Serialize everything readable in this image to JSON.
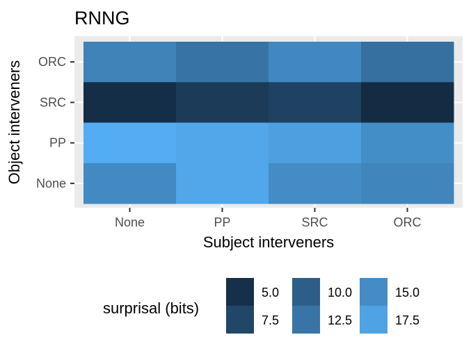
{
  "chart_data": {
    "type": "heatmap",
    "title": "RNNG",
    "xlabel": "Subject interveners",
    "ylabel": "Object interveners",
    "x_categories": [
      "None",
      "PP",
      "SRC",
      "ORC"
    ],
    "y_categories": [
      "None",
      "PP",
      "SRC",
      "ORC"
    ],
    "cells": [
      {
        "x": "None",
        "y": "ORC",
        "value": 14.0
      },
      {
        "x": "PP",
        "y": "ORC",
        "value": 12.3
      },
      {
        "x": "SRC",
        "y": "ORC",
        "value": 14.6
      },
      {
        "x": "ORC",
        "y": "ORC",
        "value": 12.0
      },
      {
        "x": "None",
        "y": "SRC",
        "value": 4.8
      },
      {
        "x": "PP",
        "y": "SRC",
        "value": 6.2
      },
      {
        "x": "SRC",
        "y": "SRC",
        "value": 7.0
      },
      {
        "x": "ORC",
        "y": "SRC",
        "value": 4.6
      },
      {
        "x": "None",
        "y": "PP",
        "value": 18.6
      },
      {
        "x": "PP",
        "y": "PP",
        "value": 17.9
      },
      {
        "x": "SRC",
        "y": "PP",
        "value": 17.1
      },
      {
        "x": "ORC",
        "y": "PP",
        "value": 15.2
      },
      {
        "x": "None",
        "y": "None",
        "value": 14.8
      },
      {
        "x": "PP",
        "y": "None",
        "value": 17.9
      },
      {
        "x": "SRC",
        "y": "None",
        "value": 15.0
      },
      {
        "x": "ORC",
        "y": "None",
        "value": 14.2
      }
    ],
    "colorbar": {
      "title": "surprisal (bits)",
      "range": [
        4.5,
        19
      ],
      "low_color": "#132B43",
      "high_color": "#56B1F7",
      "entries": [
        {
          "label": "5.0",
          "value": 5.0
        },
        {
          "label": "7.5",
          "value": 7.5
        },
        {
          "label": "10.0",
          "value": 10.0
        },
        {
          "label": "12.5",
          "value": 12.5
        },
        {
          "label": "15.0",
          "value": 15.0
        },
        {
          "label": "17.5",
          "value": 17.5
        }
      ]
    },
    "grid": true,
    "legend_position": "bottom"
  }
}
